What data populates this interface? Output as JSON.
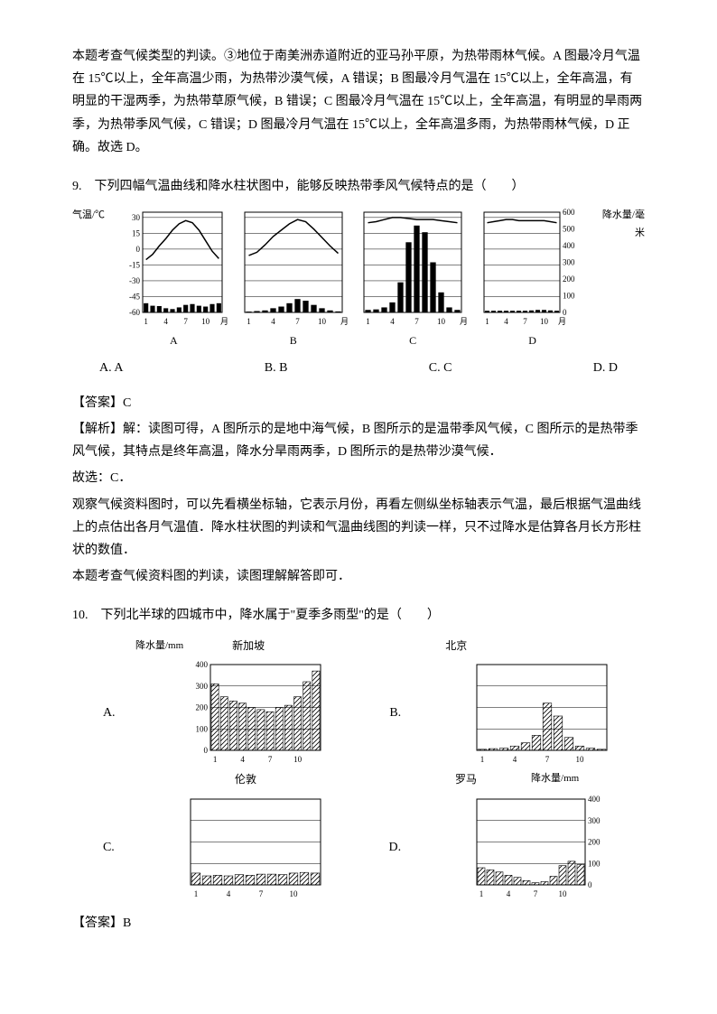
{
  "intro": {
    "p1": "本题考查气候类型的判读。③地位于南美洲赤道附近的亚马孙平原，为热带雨林气候。A 图最冷月气温在 15℃以上，全年高温少雨，为热带沙漠气候，A 错误；B 图最冷月气温在 15℃以上，全年高温，有明显的干湿两季，为热带草原气候，B 错误；C 图最冷月气温在 15℃以上，全年高温，有明显的旱雨两季，为热带季风气候，C 错误；D 图最冷月气温在 15℃以上，全年高温多雨，为热带雨林气候，D 正确。故选 D。"
  },
  "q9": {
    "title": "9.　下列四幅气温曲线和降水柱状图中，能够反映热带季风气候特点的是（　　）",
    "yleft_label": "气温/℃",
    "yright_label": "降水量/毫米",
    "temp_ticks": [
      30,
      15,
      0,
      -15,
      -30,
      -45,
      -60
    ],
    "prec_ticks": [
      600,
      500,
      400,
      300,
      200,
      100,
      0
    ],
    "x_ticks": [
      "1",
      "4",
      "7",
      "10",
      "月"
    ],
    "chart_style": {
      "width": 120,
      "height": 135,
      "stroke": "#000",
      "grid": "#000",
      "bar": "#000"
    },
    "A": {
      "temp": [
        -10,
        -5,
        3,
        10,
        18,
        24,
        27,
        25,
        18,
        8,
        -2,
        -9
      ],
      "prec": [
        55,
        40,
        38,
        25,
        20,
        30,
        45,
        50,
        40,
        35,
        50,
        55
      ]
    },
    "B": {
      "temp": [
        -6,
        -3,
        4,
        12,
        18,
        24,
        28,
        26,
        19,
        11,
        3,
        -4
      ],
      "prec": [
        5,
        8,
        12,
        25,
        35,
        55,
        80,
        70,
        45,
        25,
        12,
        6
      ]
    },
    "C": {
      "temp": [
        25,
        26,
        28,
        30,
        30,
        29,
        28,
        28,
        28,
        27,
        26,
        25
      ],
      "prec": [
        15,
        18,
        30,
        60,
        180,
        420,
        520,
        480,
        300,
        120,
        30,
        15
      ]
    },
    "D": {
      "temp": [
        25,
        26,
        27,
        28,
        28,
        27,
        27,
        27,
        27,
        27,
        26,
        25
      ],
      "prec": [
        10,
        10,
        10,
        10,
        10,
        10,
        10,
        12,
        15,
        15,
        12,
        10
      ]
    },
    "opt_labels": {
      "A": "A. A",
      "B": "B. B",
      "C": "C. C",
      "D": "D. D"
    },
    "answer": "【答案】C",
    "exp1": "【解析】解：读图可得，A 图所示的是地中海气候，B 图所示的是温带季风气候，C 图所示的是热带季风气候，其特点是终年高温，降水分旱雨两季，D 图所示的是热带沙漠气候．",
    "exp2": "故选：C．",
    "exp3": "观察气候资料图时，可以先看横坐标轴，它表示月份，再看左侧纵坐标轴表示气温，最后根据气温曲线上的点估出各月气温值．降水柱状图的判读和气温曲线图的判读一样，只不过降水是估算各月长方形柱状的数值．",
    "exp4": "本题考查气候资料图的判读，读图理解解答即可．"
  },
  "q10": {
    "title": "10.　下列北半球的四城市中，降水属于\"夏季多雨型\"的是（　　）",
    "yleft_label": "降水量/mm",
    "yright_label": "降水量/mm",
    "y_ticks": [
      400,
      300,
      200,
      100,
      0
    ],
    "x_ticks": [
      "1",
      "4",
      "7",
      "10",
      "(月)"
    ],
    "chart_style": {
      "width": 160,
      "height": 115,
      "stroke": "#000",
      "bar_fill": "#fff",
      "hatch": "#000"
    },
    "cities": {
      "A": "新加坡",
      "B": "北京",
      "C": "伦敦",
      "D": "罗马"
    },
    "A": {
      "prec": [
        310,
        250,
        230,
        220,
        200,
        190,
        180,
        200,
        210,
        250,
        320,
        370
      ]
    },
    "B": {
      "prec": [
        5,
        8,
        10,
        20,
        35,
        70,
        220,
        160,
        60,
        20,
        10,
        5
      ]
    },
    "C": {
      "prec": [
        55,
        42,
        45,
        42,
        48,
        45,
        50,
        50,
        48,
        55,
        58,
        55
      ]
    },
    "D": {
      "prec": [
        80,
        70,
        60,
        45,
        35,
        20,
        10,
        15,
        40,
        90,
        110,
        95
      ]
    },
    "answer": "【答案】B"
  }
}
